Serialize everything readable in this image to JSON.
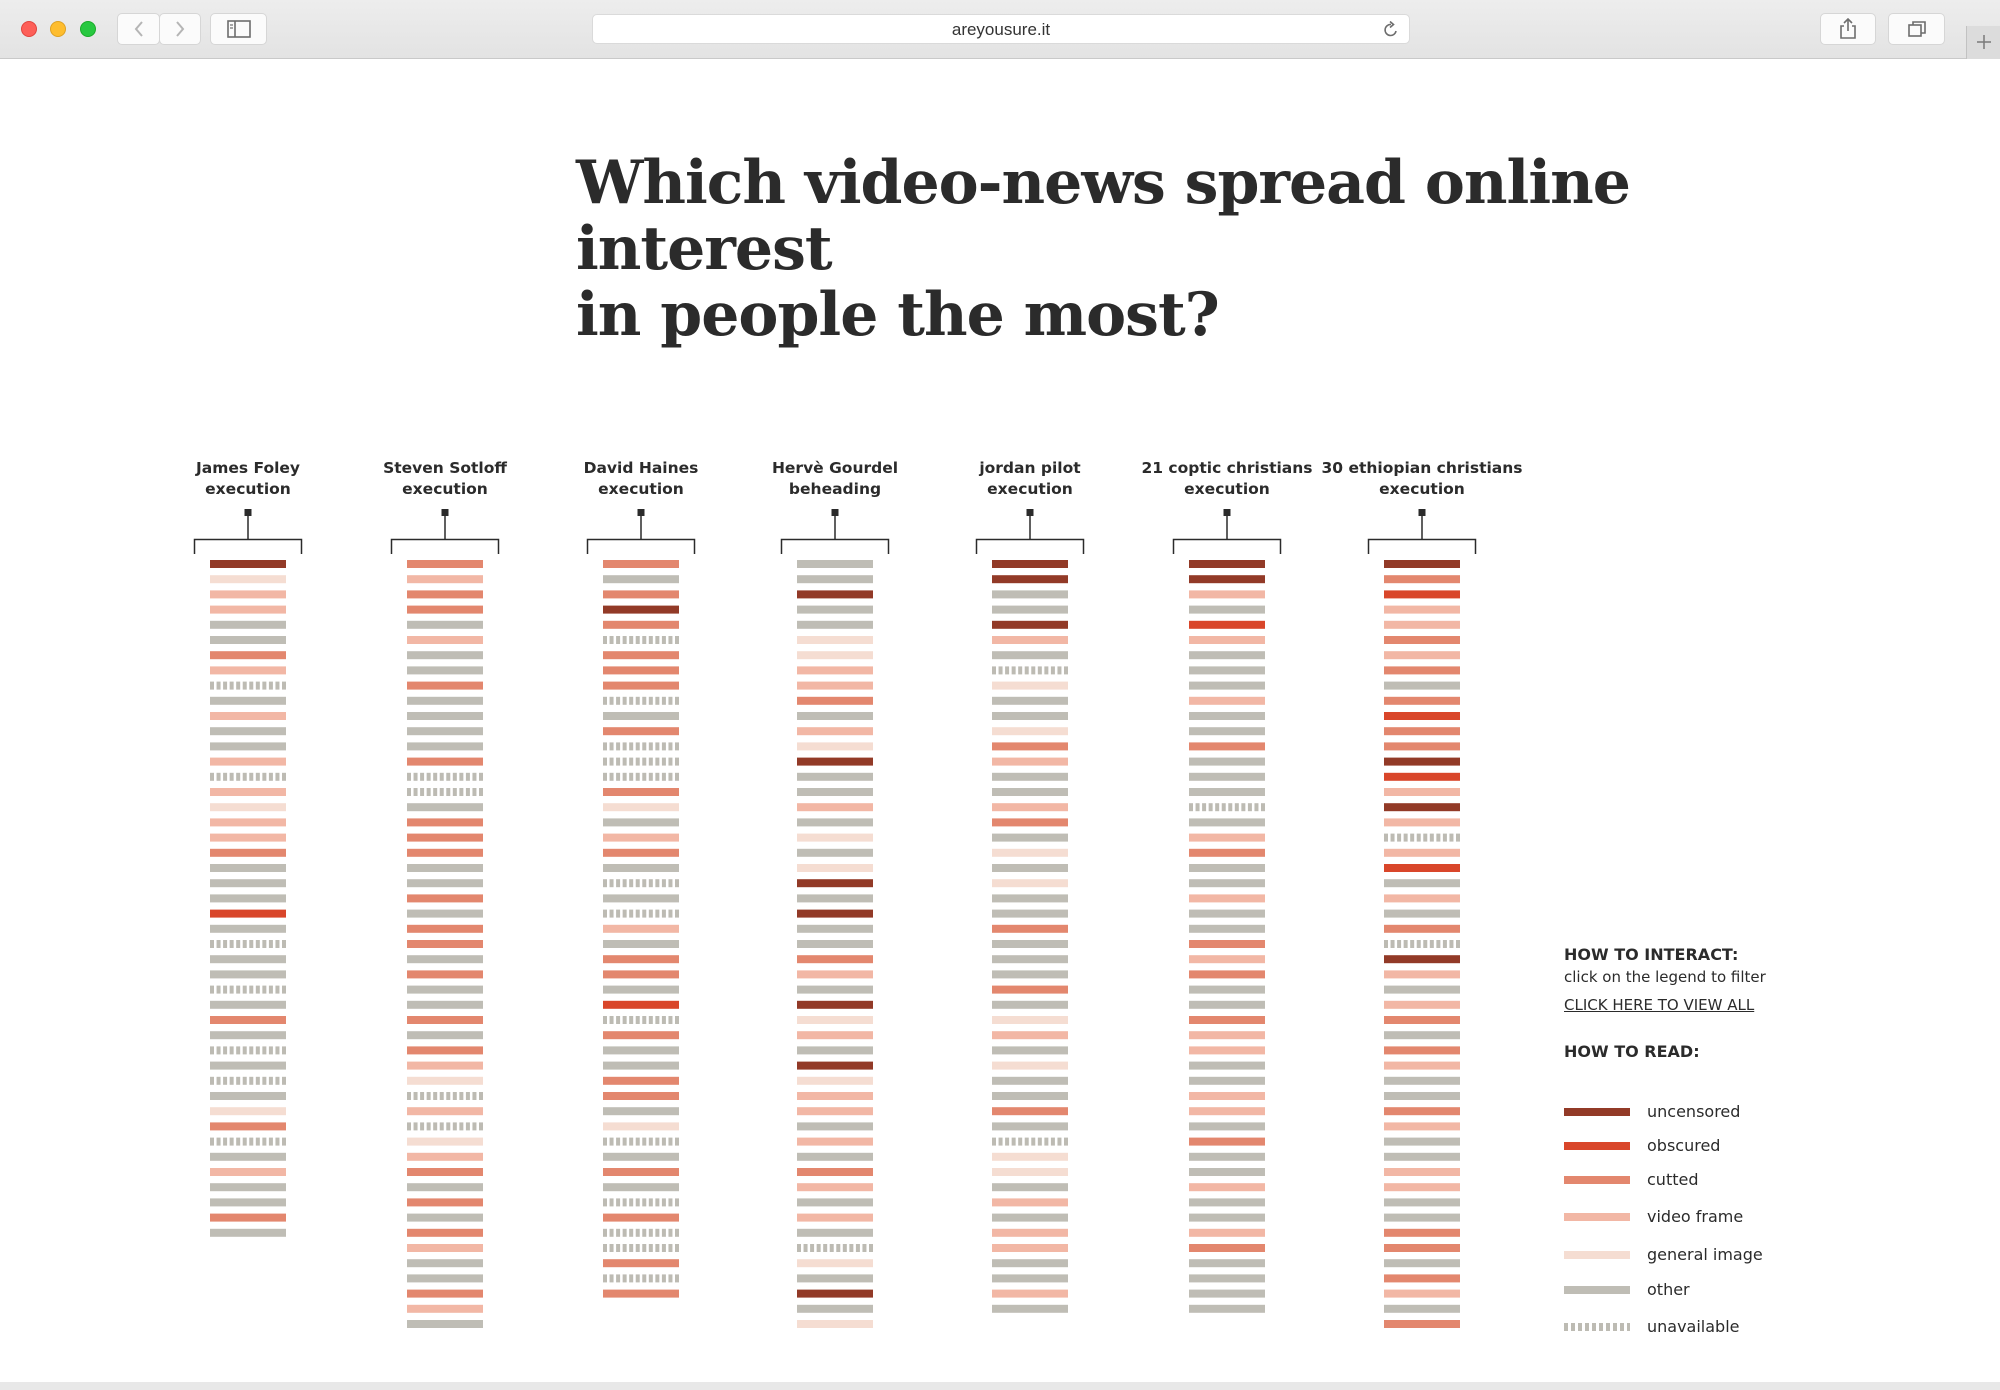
{
  "browser": {
    "url": "areyousure.it",
    "icons": [
      "back-icon",
      "forward-icon",
      "sidebar-icon",
      "reload-icon",
      "share-icon",
      "tabs-icon",
      "plus-icon"
    ]
  },
  "headline": {
    "line1": "Which video-news spread online interest",
    "line2": "in people the most?"
  },
  "colors": {
    "uncensored": "#923a27",
    "obscured": "#d9462a",
    "cutted": "#e3876e",
    "video_frame": "#f2b7a5",
    "general_image": "#f5ddd2",
    "other": "#bfbdb5",
    "unavailable": "#bdbbb3"
  },
  "legend": {
    "interact_title": "HOW TO INTERACT:",
    "interact_text": "click on the legend to filter",
    "view_all": "CLICK HERE TO VIEW ALL",
    "read_title": "HOW TO READ:",
    "items": [
      {
        "key": "uncensored",
        "label": "uncensored"
      },
      {
        "key": "obscured",
        "label": "obscured"
      },
      {
        "key": "cutted",
        "label": "cutted"
      },
      {
        "key": "video_frame",
        "label": "video frame"
      },
      {
        "key": "general_image",
        "label": "general image"
      },
      {
        "key": "other",
        "label": "other"
      },
      {
        "key": "unavailable",
        "label": "unavailable"
      }
    ]
  },
  "chart_data": {
    "type": "table",
    "title": "Which video-news spread online interest in people the most?",
    "columns": [
      {
        "line1": "James Foley",
        "line2": "execution",
        "items": [
          "U",
          "G",
          "V",
          "V",
          "O",
          "O",
          "C",
          "V",
          "X",
          "O",
          "V",
          "O",
          "O",
          "V",
          "X",
          "V",
          "G",
          "V",
          "V",
          "C",
          "O",
          "O",
          "O",
          "B",
          "O",
          "X",
          "O",
          "O",
          "X",
          "O",
          "C",
          "O",
          "X",
          "O",
          "X",
          "O",
          "G",
          "C",
          "X",
          "O",
          "V",
          "O",
          "O",
          "C",
          "O"
        ]
      },
      {
        "line1": "Steven Sotloff",
        "line2": "execution",
        "items": [
          "C",
          "V",
          "C",
          "C",
          "O",
          "V",
          "O",
          "O",
          "C",
          "O",
          "O",
          "O",
          "O",
          "C",
          "X",
          "X",
          "O",
          "C",
          "C",
          "C",
          "O",
          "O",
          "C",
          "O",
          "C",
          "C",
          "O",
          "C",
          "O",
          "O",
          "C",
          "O",
          "C",
          "V",
          "G",
          "X",
          "V",
          "X",
          "G",
          "V",
          "C",
          "O",
          "C",
          "O",
          "C",
          "V",
          "O",
          "O",
          "C",
          "V",
          "O"
        ]
      },
      {
        "line1": "David Haines",
        "line2": "execution",
        "items": [
          "C",
          "O",
          "C",
          "U",
          "C",
          "X",
          "C",
          "C",
          "C",
          "X",
          "O",
          "C",
          "X",
          "X",
          "X",
          "C",
          "G",
          "O",
          "V",
          "C",
          "O",
          "X",
          "O",
          "X",
          "V",
          "O",
          "C",
          "C",
          "O",
          "B",
          "X",
          "C",
          "O",
          "O",
          "C",
          "C",
          "O",
          "G",
          "X",
          "O",
          "C",
          "O",
          "X",
          "C",
          "X",
          "X",
          "C",
          "X",
          "C"
        ]
      },
      {
        "line1": "Hervè Gourdel",
        "line2": "beheading",
        "items": [
          "O",
          "O",
          "U",
          "O",
          "O",
          "G",
          "G",
          "V",
          "V",
          "C",
          "O",
          "V",
          "G",
          "U",
          "O",
          "O",
          "V",
          "O",
          "G",
          "O",
          "G",
          "U",
          "O",
          "U",
          "O",
          "O",
          "C",
          "V",
          "O",
          "U",
          "G",
          "V",
          "O",
          "U",
          "G",
          "V",
          "V",
          "O",
          "V",
          "O",
          "C",
          "V",
          "O",
          "V",
          "O",
          "X",
          "G",
          "O",
          "U",
          "O",
          "G"
        ]
      },
      {
        "line1": "jordan pilot",
        "line2": "execution",
        "items": [
          "U",
          "U",
          "O",
          "O",
          "U",
          "V",
          "O",
          "X",
          "G",
          "O",
          "O",
          "G",
          "C",
          "V",
          "O",
          "O",
          "V",
          "C",
          "O",
          "G",
          "O",
          "G",
          "O",
          "O",
          "C",
          "O",
          "O",
          "O",
          "C",
          "O",
          "G",
          "V",
          "O",
          "G",
          "O",
          "O",
          "C",
          "O",
          "X",
          "G",
          "G",
          "O",
          "V",
          "O",
          "V",
          "V",
          "O",
          "O",
          "V",
          "O"
        ]
      },
      {
        "line1": "21 coptic christians",
        "line2": "execution",
        "items": [
          "U",
          "U",
          "V",
          "O",
          "B",
          "V",
          "O",
          "O",
          "O",
          "V",
          "O",
          "O",
          "C",
          "O",
          "O",
          "O",
          "X",
          "O",
          "V",
          "C",
          "O",
          "O",
          "V",
          "O",
          "O",
          "C",
          "V",
          "C",
          "O",
          "O",
          "C",
          "V",
          "V",
          "O",
          "O",
          "V",
          "V",
          "O",
          "C",
          "O",
          "O",
          "V",
          "O",
          "O",
          "V",
          "C",
          "O",
          "O",
          "O",
          "O"
        ]
      },
      {
        "line1": "30 ethiopian christians",
        "line2": "execution",
        "items": [
          "U",
          "C",
          "B",
          "V",
          "V",
          "C",
          "V",
          "C",
          "O",
          "C",
          "B",
          "C",
          "C",
          "U",
          "B",
          "V",
          "U",
          "V",
          "X",
          "V",
          "B",
          "O",
          "V",
          "O",
          "C",
          "X",
          "U",
          "V",
          "O",
          "V",
          "C",
          "O",
          "C",
          "V",
          "O",
          "O",
          "C",
          "V",
          "O",
          "O",
          "V",
          "V",
          "O",
          "O",
          "C",
          "C",
          "O",
          "C",
          "V",
          "O",
          "C"
        ]
      }
    ]
  }
}
